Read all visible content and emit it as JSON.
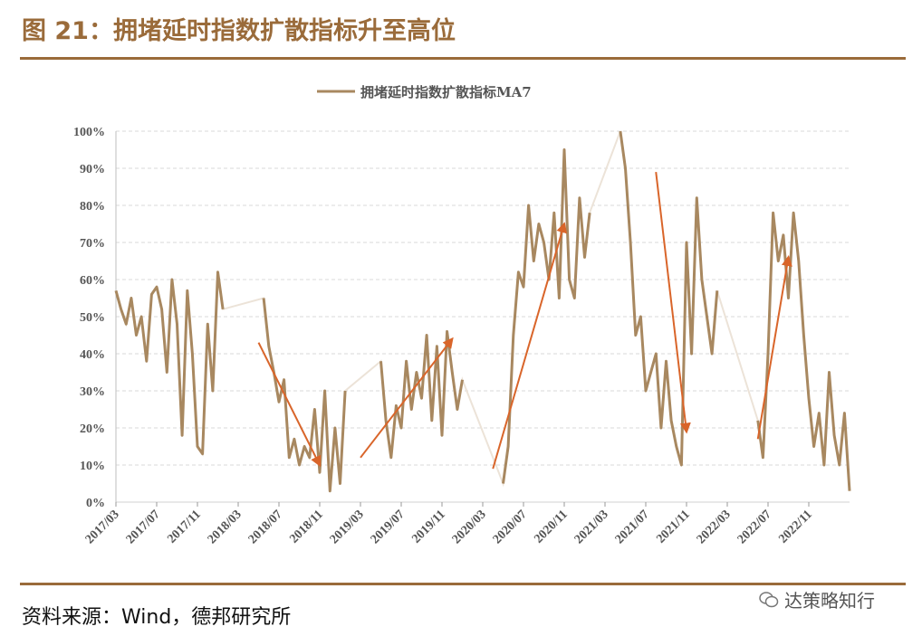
{
  "header": {
    "title": "图 21：拥堵延时指数扩散指标升至高位"
  },
  "footer": {
    "source": "资料来源：Wind，德邦研究所",
    "watermark": "达策略知行",
    "watermark_icon": "wechat-icon"
  },
  "colors": {
    "brand": "#9a6b3a",
    "series": "#a88860",
    "series_faint": "#ece3d8",
    "arrow": "#d9652a",
    "grid": "#d9d9d9"
  },
  "chart_data": {
    "type": "line",
    "title": "",
    "xlabel": "",
    "ylabel": "",
    "legend": {
      "position": "top-center",
      "entries": [
        "拥堵延时指数扩散指标MA7"
      ]
    },
    "grid": true,
    "ylim": [
      0,
      100
    ],
    "yticks": [
      "0%",
      "10%",
      "20%",
      "30%",
      "40%",
      "50%",
      "60%",
      "70%",
      "80%",
      "90%",
      "100%"
    ],
    "xticks": [
      "2017/03",
      "2017/07",
      "2017/11",
      "2018/03",
      "2018/07",
      "2018/11",
      "2019/03",
      "2019/07",
      "2019/11",
      "2020/03",
      "2020/07",
      "2020/11",
      "2021/03",
      "2021/07",
      "2021/11",
      "2022/03",
      "2022/07",
      "2022/11"
    ],
    "series": [
      {
        "name": "拥堵延时指数扩散指标MA7",
        "note": "values in %, one per ~2 weeks; null = gap",
        "x_start": "2017/03",
        "step_months": 0.5,
        "values": [
          57,
          52,
          48,
          55,
          45,
          50,
          38,
          56,
          58,
          52,
          35,
          60,
          48,
          18,
          57,
          40,
          15,
          13,
          48,
          30,
          62,
          52,
          null,
          null,
          null,
          null,
          null,
          null,
          null,
          55,
          42,
          35,
          27,
          33,
          12,
          17,
          10,
          15,
          12,
          25,
          8,
          30,
          3,
          20,
          5,
          30,
          null,
          null,
          null,
          null,
          null,
          null,
          38,
          22,
          12,
          26,
          20,
          38,
          25,
          35,
          28,
          45,
          22,
          42,
          18,
          46,
          35,
          25,
          33,
          null,
          null,
          null,
          null,
          null,
          null,
          null,
          5,
          15,
          45,
          62,
          58,
          80,
          65,
          75,
          70,
          60,
          78,
          55,
          95,
          60,
          55,
          82,
          66,
          78,
          null,
          null,
          null,
          null,
          null,
          100,
          90,
          70,
          45,
          50,
          30,
          35,
          40,
          20,
          38,
          22,
          15,
          10,
          70,
          40,
          82,
          60,
          50,
          40,
          57,
          null,
          null,
          null,
          null,
          null,
          null,
          null,
          22,
          12,
          40,
          78,
          65,
          72,
          55,
          78,
          65,
          45,
          28,
          15,
          24,
          10,
          35,
          18,
          10,
          24,
          3
        ]
      }
    ],
    "arrows": [
      {
        "from": [
          "2018/05",
          43
        ],
        "to": [
          "2018/11",
          10
        ]
      },
      {
        "from": [
          "2019/03",
          12
        ],
        "to": [
          "2019/12",
          44
        ]
      },
      {
        "from": [
          "2020/04",
          9
        ],
        "to": [
          "2020/11",
          75
        ]
      },
      {
        "from": [
          "2021/08",
          89
        ],
        "to": [
          "2021/11",
          19
        ]
      },
      {
        "from": [
          "2022/06",
          17
        ],
        "to": [
          "2022/09",
          66
        ]
      }
    ]
  }
}
